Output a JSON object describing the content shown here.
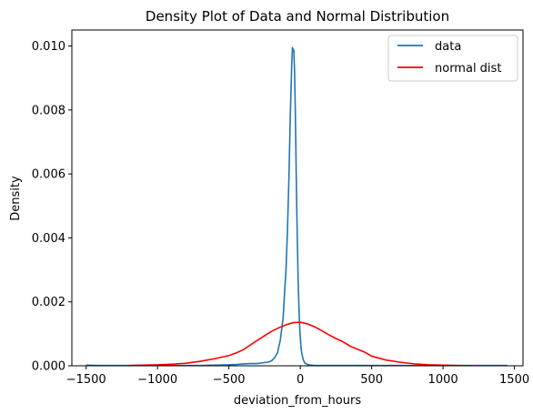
{
  "chart_data": {
    "type": "line",
    "title": "Density Plot of Data and Normal Distribution",
    "xlabel": "deviation_from_hours",
    "ylabel": "Density",
    "xlim": [
      -1600,
      1560
    ],
    "ylim": [
      0,
      0.0105
    ],
    "xticks": [
      -1500,
      -1000,
      -500,
      0,
      500,
      1000,
      1500
    ],
    "xtick_labels": [
      "−1500",
      "−1000",
      "−500",
      "0",
      "500",
      "1000",
      "1500"
    ],
    "yticks": [
      0.0,
      0.002,
      0.004,
      0.006,
      0.008,
      0.01
    ],
    "ytick_labels": [
      "0.000",
      "0.002",
      "0.004",
      "0.006",
      "0.008",
      "0.010"
    ],
    "grid": false,
    "legend_position": "top-right",
    "series": [
      {
        "name": "data",
        "color": "#1f77b4",
        "x": [
          -1500,
          -1400,
          -1300,
          -1200,
          -1100,
          -1000,
          -900,
          -800,
          -700,
          -600,
          -500,
          -450,
          -400,
          -350,
          -300,
          -250,
          -220,
          -200,
          -180,
          -160,
          -140,
          -120,
          -110,
          -100,
          -90,
          -80,
          -70,
          -60,
          -55,
          -50,
          -45,
          -40,
          -35,
          -30,
          -25,
          -20,
          -15,
          -10,
          -5,
          0,
          5,
          10,
          20,
          30,
          40,
          50,
          60,
          70,
          80,
          100,
          150,
          200,
          300,
          400,
          500,
          700,
          900,
          1100,
          1300,
          1450
        ],
        "y": [
          2e-05,
          1e-05,
          1e-05,
          1e-05,
          1e-05,
          1e-05,
          1e-05,
          1e-05,
          1e-05,
          2e-05,
          3e-05,
          4e-05,
          6e-05,
          7e-05,
          7e-05,
          0.0001,
          0.00012,
          0.00016,
          0.00025,
          0.0004,
          0.0008,
          0.0015,
          0.0023,
          0.003,
          0.0042,
          0.0058,
          0.0078,
          0.0094,
          0.00995,
          0.0099,
          0.00985,
          0.0092,
          0.008,
          0.0065,
          0.005,
          0.0038,
          0.0027,
          0.0019,
          0.0013,
          0.0009,
          0.0006,
          0.0004,
          0.0002,
          0.0001,
          7e-05,
          4e-05,
          3e-05,
          2e-05,
          2e-05,
          1e-05,
          1e-05,
          1e-05,
          1e-05,
          1e-05,
          1e-05,
          1e-05,
          1e-05,
          1e-05,
          1e-05,
          1e-05
        ]
      },
      {
        "name": "normal dist",
        "color": "#ff0000",
        "x": [
          -1200,
          -1100,
          -1000,
          -900,
          -800,
          -700,
          -600,
          -500,
          -450,
          -400,
          -350,
          -300,
          -250,
          -200,
          -150,
          -100,
          -50,
          0,
          50,
          100,
          150,
          200,
          250,
          300,
          350,
          400,
          450,
          500,
          600,
          700,
          800,
          900,
          1000,
          1100,
          1200
        ],
        "y": [
          1e-05,
          2e-05,
          3e-05,
          5e-05,
          8e-05,
          0.00014,
          0.00022,
          0.00032,
          0.0004,
          0.0005,
          0.00065,
          0.0008,
          0.00094,
          0.00108,
          0.00119,
          0.00128,
          0.00135,
          0.00136,
          0.00131,
          0.00122,
          0.0011,
          0.00097,
          0.00085,
          0.00075,
          0.00061,
          0.00052,
          0.00043,
          0.0003,
          0.00018,
          0.00011,
          6e-05,
          3e-05,
          2e-05,
          1e-05,
          0.0
        ]
      }
    ]
  }
}
